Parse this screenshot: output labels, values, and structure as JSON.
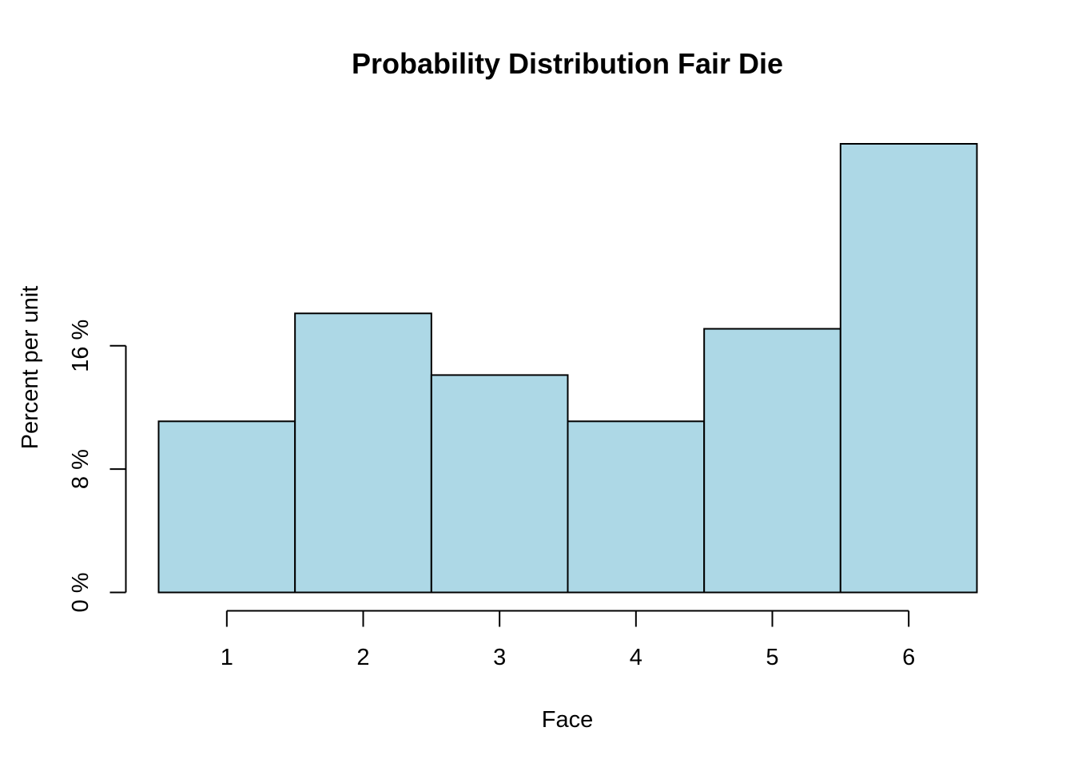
{
  "chart_data": {
    "type": "bar",
    "title": "Probability Distribution Fair Die",
    "xlabel": "Face",
    "ylabel": "Percent per unit",
    "categories": [
      "1",
      "2",
      "3",
      "4",
      "5",
      "6"
    ],
    "values": [
      11.1,
      18.1,
      14.1,
      11.1,
      17.1,
      29.1
    ],
    "ylim": [
      0,
      29.1
    ],
    "yticks": [
      0,
      8,
      16
    ],
    "ytick_labels": [
      "0 %",
      "8 %",
      "16 %"
    ],
    "xticks": [
      1,
      2,
      3,
      4,
      5,
      6
    ],
    "xtick_labels": [
      "1",
      "2",
      "3",
      "4",
      "5",
      "6"
    ],
    "grid": false,
    "legend": "none"
  },
  "colors": {
    "bar_fill": "#add8e6",
    "bar_stroke": "#000000",
    "axis": "#000000",
    "background": "#ffffff"
  }
}
